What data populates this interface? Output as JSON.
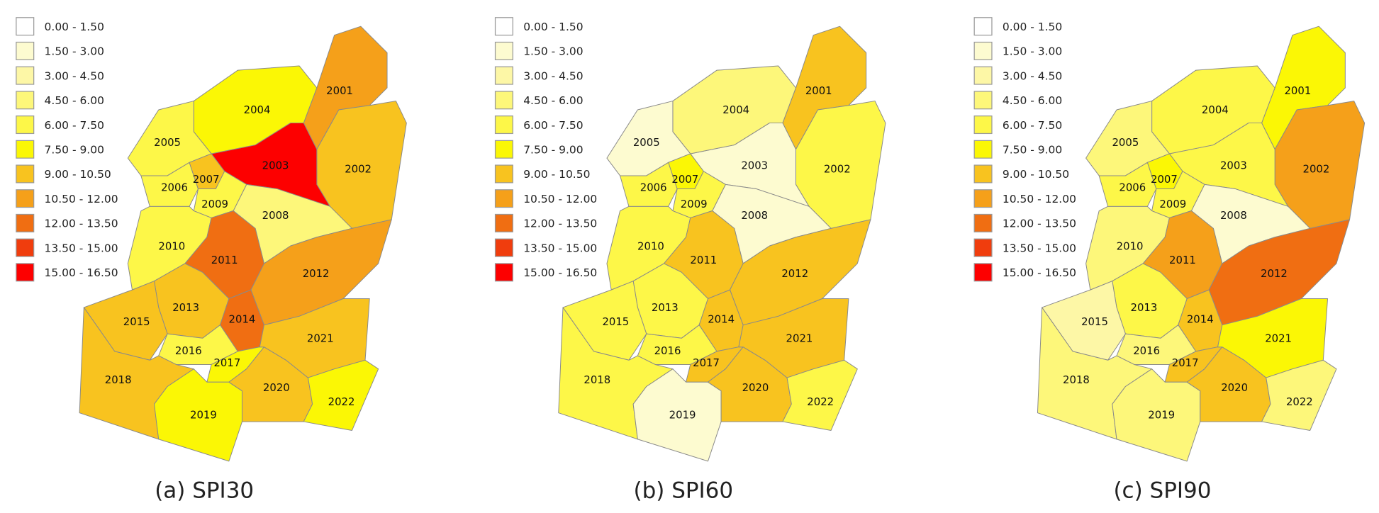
{
  "legend": [
    {
      "label": "0.00 - 1.50",
      "color": "#ffffff"
    },
    {
      "label": "1.50 - 3.00",
      "color": "#fdfbd0"
    },
    {
      "label": "3.00 - 4.50",
      "color": "#fdf7a6"
    },
    {
      "label": "4.50 - 6.00",
      "color": "#fdf77a"
    },
    {
      "label": "6.00 - 7.50",
      "color": "#fdf748"
    },
    {
      "label": "7.50 - 9.00",
      "color": "#fbf705"
    },
    {
      "label": "9.00 - 10.50",
      "color": "#f8c31f"
    },
    {
      "label": "10.50 - 12.00",
      "color": "#f5a01a"
    },
    {
      "label": "12.00 - 13.50",
      "color": "#f06e12"
    },
    {
      "label": "13.50 - 15.00",
      "color": "#f03d0d"
    },
    {
      "label": "15.00 - 16.50",
      "color": "#fd0000"
    }
  ],
  "panels": [
    {
      "caption": "(a) SPI30",
      "regions": [
        {
          "label": "2001",
          "class": 7
        },
        {
          "label": "2002",
          "class": 6
        },
        {
          "label": "2003",
          "class": 10
        },
        {
          "label": "2004",
          "class": 5
        },
        {
          "label": "2005",
          "class": 4
        },
        {
          "label": "2006",
          "class": 4
        },
        {
          "label": "2007",
          "class": 6
        },
        {
          "label": "2008",
          "class": 3
        },
        {
          "label": "2009",
          "class": 4
        },
        {
          "label": "2010",
          "class": 4
        },
        {
          "label": "2011",
          "class": 8
        },
        {
          "label": "2012",
          "class": 7
        },
        {
          "label": "2013",
          "class": 6
        },
        {
          "label": "2014",
          "class": 8
        },
        {
          "label": "2015",
          "class": 6
        },
        {
          "label": "2016",
          "class": 4
        },
        {
          "label": "2017",
          "class": 5
        },
        {
          "label": "2018",
          "class": 6
        },
        {
          "label": "2019",
          "class": 5
        },
        {
          "label": "2020",
          "class": 6
        },
        {
          "label": "2021",
          "class": 6
        },
        {
          "label": "2022",
          "class": 5
        }
      ]
    },
    {
      "caption": "(b) SPI60",
      "regions": [
        {
          "label": "2001",
          "class": 6
        },
        {
          "label": "2002",
          "class": 4
        },
        {
          "label": "2003",
          "class": 1
        },
        {
          "label": "2004",
          "class": 3
        },
        {
          "label": "2005",
          "class": 1
        },
        {
          "label": "2006",
          "class": 4
        },
        {
          "label": "2007",
          "class": 5
        },
        {
          "label": "2008",
          "class": 1
        },
        {
          "label": "2009",
          "class": 4
        },
        {
          "label": "2010",
          "class": 4
        },
        {
          "label": "2011",
          "class": 6
        },
        {
          "label": "2012",
          "class": 6
        },
        {
          "label": "2013",
          "class": 4
        },
        {
          "label": "2014",
          "class": 6
        },
        {
          "label": "2015",
          "class": 4
        },
        {
          "label": "2016",
          "class": 4
        },
        {
          "label": "2017",
          "class": 6
        },
        {
          "label": "2018",
          "class": 4
        },
        {
          "label": "2019",
          "class": 1
        },
        {
          "label": "2020",
          "class": 6
        },
        {
          "label": "2021",
          "class": 6
        },
        {
          "label": "2022",
          "class": 4
        }
      ]
    },
    {
      "caption": "(c) SPI90",
      "regions": [
        {
          "label": "2001",
          "class": 5
        },
        {
          "label": "2002",
          "class": 7
        },
        {
          "label": "2003",
          "class": 4
        },
        {
          "label": "2004",
          "class": 4
        },
        {
          "label": "2005",
          "class": 3
        },
        {
          "label": "2006",
          "class": 4
        },
        {
          "label": "2007",
          "class": 5
        },
        {
          "label": "2008",
          "class": 1
        },
        {
          "label": "2009",
          "class": 4
        },
        {
          "label": "2010",
          "class": 3
        },
        {
          "label": "2011",
          "class": 7
        },
        {
          "label": "2012",
          "class": 8
        },
        {
          "label": "2013",
          "class": 4
        },
        {
          "label": "2014",
          "class": 6
        },
        {
          "label": "2015",
          "class": 2
        },
        {
          "label": "2016",
          "class": 3
        },
        {
          "label": "2017",
          "class": 6
        },
        {
          "label": "2018",
          "class": 3
        },
        {
          "label": "2019",
          "class": 3
        },
        {
          "label": "2020",
          "class": 6
        },
        {
          "label": "2021",
          "class": 5
        },
        {
          "label": "2022",
          "class": 3
        }
      ]
    }
  ]
}
